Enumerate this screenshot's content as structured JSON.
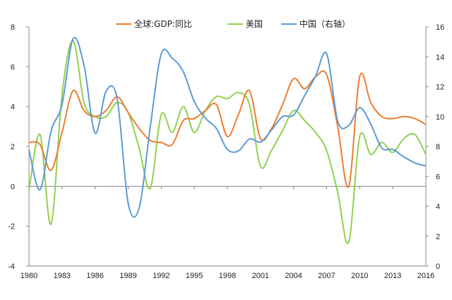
{
  "chart_data": {
    "type": "line",
    "legend": {
      "placement": "top-center",
      "entries": [
        "全球:GDP:同比",
        "美国",
        "中国（右轴）"
      ]
    },
    "x": [
      1980,
      1981,
      1982,
      1983,
      1984,
      1985,
      1986,
      1987,
      1988,
      1989,
      1990,
      1991,
      1992,
      1993,
      1994,
      1995,
      1996,
      1997,
      1998,
      1999,
      2000,
      2001,
      2002,
      2003,
      2004,
      2005,
      2006,
      2007,
      2008,
      2009,
      2010,
      2011,
      2012,
      2013,
      2014,
      2015,
      2016
    ],
    "x_ticks": [
      "1980",
      "1983",
      "1986",
      "1989",
      "1992",
      "1995",
      "1998",
      "2001",
      "2004",
      "2007",
      "2010",
      "2013",
      "2016"
    ],
    "y_left": {
      "range": [
        -4,
        8
      ],
      "ticks": [
        "-4",
        "-2",
        "0",
        "2",
        "4",
        "6",
        "8"
      ]
    },
    "y_right": {
      "range": [
        0,
        16
      ],
      "ticks": [
        "0",
        "2",
        "4",
        "6",
        "8",
        "10",
        "12",
        "14",
        "16"
      ]
    },
    "grid": false,
    "series": [
      {
        "name": "全球:GDP:同比",
        "axis": "left",
        "color": "#ED7D31",
        "values": [
          2.2,
          2.1,
          0.8,
          2.7,
          4.8,
          3.8,
          3.5,
          3.8,
          4.5,
          3.7,
          2.9,
          2.3,
          2.2,
          2.1,
          3.3,
          3.4,
          3.8,
          4.1,
          2.5,
          3.6,
          4.8,
          2.4,
          2.9,
          4.1,
          5.4,
          4.9,
          5.5,
          5.6,
          3.0,
          0.0,
          5.5,
          4.2,
          3.5,
          3.4,
          3.5,
          3.4,
          3.1
        ]
      },
      {
        "name": "美国",
        "axis": "left",
        "color": "#92D050",
        "values": [
          -0.2,
          2.6,
          -1.9,
          4.6,
          7.3,
          4.2,
          3.5,
          3.5,
          4.2,
          3.7,
          1.9,
          -0.1,
          3.6,
          2.7,
          4.0,
          2.7,
          3.8,
          4.5,
          4.4,
          4.7,
          4.1,
          1.0,
          1.8,
          2.8,
          3.8,
          3.3,
          2.7,
          1.8,
          -0.3,
          -2.8,
          2.5,
          1.6,
          2.2,
          1.7,
          2.4,
          2.6,
          1.6
        ]
      },
      {
        "name": "中国（右轴）",
        "axis": "right",
        "color": "#5B9BD5",
        "values": [
          7.8,
          5.1,
          9.0,
          10.8,
          15.2,
          13.4,
          8.9,
          11.7,
          11.2,
          4.2,
          3.9,
          9.3,
          14.2,
          13.9,
          13.0,
          11.0,
          9.9,
          9.2,
          7.8,
          7.7,
          8.5,
          8.3,
          9.1,
          10.0,
          10.1,
          11.4,
          12.7,
          14.2,
          9.7,
          9.4,
          10.6,
          9.5,
          7.9,
          7.8,
          7.3,
          6.9,
          6.7
        ]
      }
    ]
  }
}
